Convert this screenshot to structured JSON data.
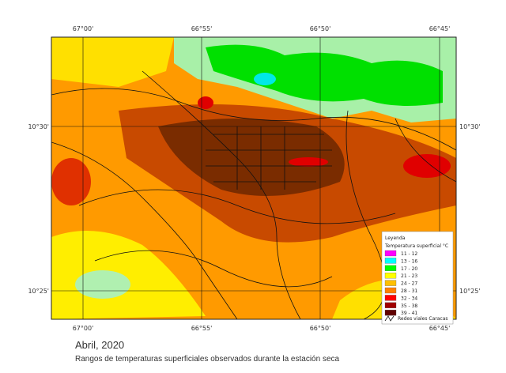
{
  "map": {
    "top_labels": [
      "67°00'",
      "66°55'",
      "66°50'",
      "66°45'"
    ],
    "bottom_labels": [
      "67°00'",
      "66°55'",
      "66°50'",
      "66°45'"
    ],
    "left_labels": [
      "10°30'",
      "10°25'"
    ],
    "right_labels": [
      "10°30'",
      "10°25'"
    ]
  },
  "legend": {
    "title": "Leyenda",
    "subtitle": "Temperatura superficial °C",
    "items": [
      {
        "label": "11 - 12",
        "color": "#ff00ff"
      },
      {
        "label": "13 - 16",
        "color": "#00ffff"
      },
      {
        "label": "17 - 20",
        "color": "#00ff00"
      },
      {
        "label": "21 - 23",
        "color": "#ffff00"
      },
      {
        "label": "24 - 27",
        "color": "#ffc000"
      },
      {
        "label": "28 - 31",
        "color": "#ff8000"
      },
      {
        "label": "32 - 34",
        "color": "#ff0000"
      },
      {
        "label": "35 - 38",
        "color": "#a00000"
      },
      {
        "label": "39 - 41",
        "color": "#600000"
      }
    ],
    "roads": "Redes viales Caracas"
  },
  "caption": {
    "title": "Abril, 2020",
    "text": "Rangos de temperaturas superficiales observados durante la estación seca"
  }
}
